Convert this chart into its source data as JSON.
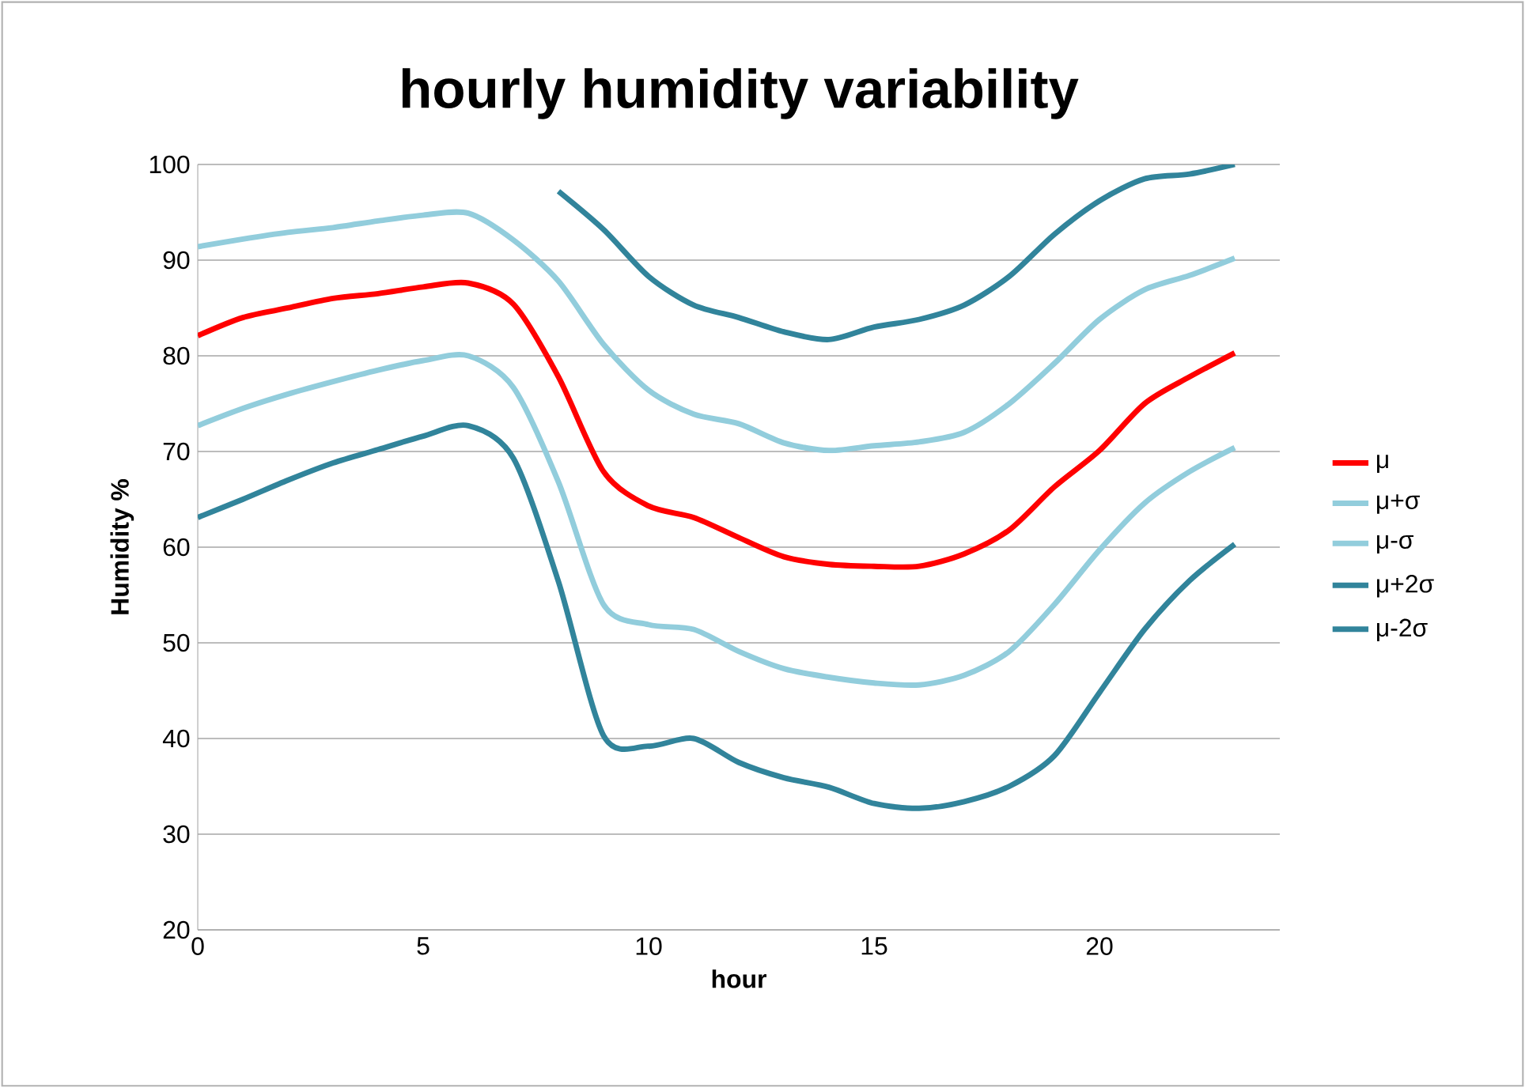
{
  "chart_data": {
    "type": "line",
    "title": "hourly humidity variability",
    "xlabel": "hour",
    "ylabel": "Humidity %",
    "x": [
      0,
      1,
      2,
      3,
      4,
      5,
      6,
      7,
      8,
      9,
      10,
      11,
      12,
      13,
      14,
      15,
      16,
      17,
      18,
      19,
      20,
      21,
      22,
      23
    ],
    "xlim": [
      0,
      24
    ],
    "xticks": [
      0,
      5,
      10,
      15,
      20
    ],
    "ylim": [
      20,
      100
    ],
    "yticks": [
      20,
      30,
      40,
      50,
      60,
      70,
      80,
      90,
      100
    ],
    "grid": "y",
    "legend": "right",
    "marker": "none",
    "line_style": "solid",
    "series": [
      {
        "name": "μ",
        "color": "#ff0000",
        "values": [
          82.1,
          84,
          85,
          86,
          86.5,
          87.2,
          87.6,
          85.4,
          77.8,
          67.9,
          64.3,
          63.1,
          61,
          59,
          58.2,
          58,
          58,
          59.3,
          61.8,
          66.3,
          70.1,
          75,
          77.8,
          80.3
        ]
      },
      {
        "name": "μ+σ",
        "color": "#92cddc",
        "values": [
          91.4,
          92.2,
          92.9,
          93.4,
          94.1,
          94.7,
          94.9,
          92.1,
          87.8,
          81.2,
          76.4,
          73.9,
          72.9,
          70.9,
          70.1,
          70.6,
          71,
          72,
          75,
          79.2,
          83.8,
          86.9,
          88.4,
          90.2
        ]
      },
      {
        "name": "μ-σ",
        "color": "#92cddc",
        "values": [
          72.7,
          74.5,
          76,
          77.3,
          78.5,
          79.5,
          80,
          76.7,
          66.8,
          54,
          51.9,
          51.4,
          49.1,
          47.3,
          46.4,
          45.8,
          45.6,
          46.6,
          49.1,
          54,
          59.7,
          64.6,
          67.9,
          70.4
        ]
      },
      {
        "name": "μ+2σ",
        "color": "#31849b",
        "values": [
          null,
          null,
          null,
          null,
          null,
          null,
          null,
          null,
          97.2,
          93.2,
          88.3,
          85.3,
          84,
          82.5,
          81.7,
          83,
          83.8,
          85.3,
          88.3,
          92.7,
          96.2,
          98.5,
          99,
          100
        ]
      },
      {
        "name": "μ-2σ",
        "color": "#31849b",
        "values": [
          63.1,
          65,
          67,
          68.8,
          70.2,
          71.6,
          72.7,
          69.3,
          56.4,
          40.3,
          39.2,
          40,
          37.5,
          35.9,
          34.9,
          33.2,
          32.7,
          33.4,
          35,
          38.2,
          44.8,
          51.4,
          56.5,
          60.3
        ]
      }
    ]
  }
}
